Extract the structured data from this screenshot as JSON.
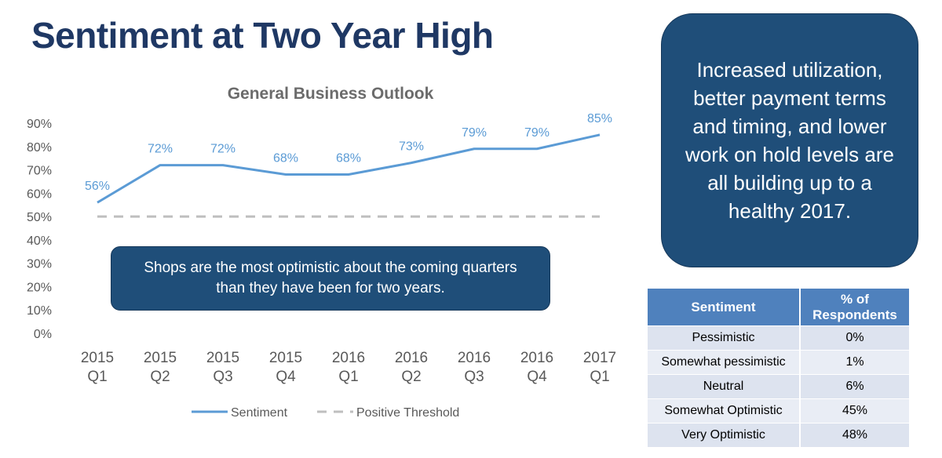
{
  "slide": {
    "title": "Sentiment at Two Year High",
    "callout": "Shops are the most optimistic about the coming quarters than they have been for two years.",
    "side_note": "Increased utilization, better payment terms and timing, and lower work on hold levels are all building up to a healthy 2017."
  },
  "chart_data": {
    "type": "line",
    "title": "General Business Outlook",
    "categories": [
      [
        "2015",
        "Q1"
      ],
      [
        "2015",
        "Q2"
      ],
      [
        "2015",
        "Q3"
      ],
      [
        "2015",
        "Q4"
      ],
      [
        "2016",
        "Q1"
      ],
      [
        "2016",
        "Q2"
      ],
      [
        "2016",
        "Q3"
      ],
      [
        "2016",
        "Q4"
      ],
      [
        "2017",
        "Q1"
      ]
    ],
    "series": [
      {
        "name": "Sentiment",
        "values": [
          56,
          72,
          72,
          68,
          68,
          73,
          79,
          79,
          85
        ],
        "labels": [
          "56%",
          "72%",
          "72%",
          "68%",
          "68%",
          "73%",
          "79%",
          "79%",
          "85%"
        ],
        "color": "#5b9bd5",
        "style": "solid"
      },
      {
        "name": "Positive Threshold",
        "values": [
          50,
          50,
          50,
          50,
          50,
          50,
          50,
          50,
          50
        ],
        "color": "#bfbfbf",
        "style": "dashed"
      }
    ],
    "ylim": [
      0,
      90
    ],
    "yticks": [
      0,
      10,
      20,
      30,
      40,
      50,
      60,
      70,
      80,
      90
    ],
    "ytick_labels": [
      "0%",
      "10%",
      "20%",
      "30%",
      "40%",
      "50%",
      "60%",
      "70%",
      "80%",
      "90%"
    ],
    "grid": false,
    "legend": "bottom-center"
  },
  "table": {
    "headers": [
      "Sentiment",
      "% of Respondents"
    ],
    "rows": [
      [
        "Pessimistic",
        "0%"
      ],
      [
        "Somewhat pessimistic",
        "1%"
      ],
      [
        "Neutral",
        "6%"
      ],
      [
        "Somewhat Optimistic",
        "45%"
      ],
      [
        "Very Optimistic",
        "48%"
      ]
    ]
  }
}
